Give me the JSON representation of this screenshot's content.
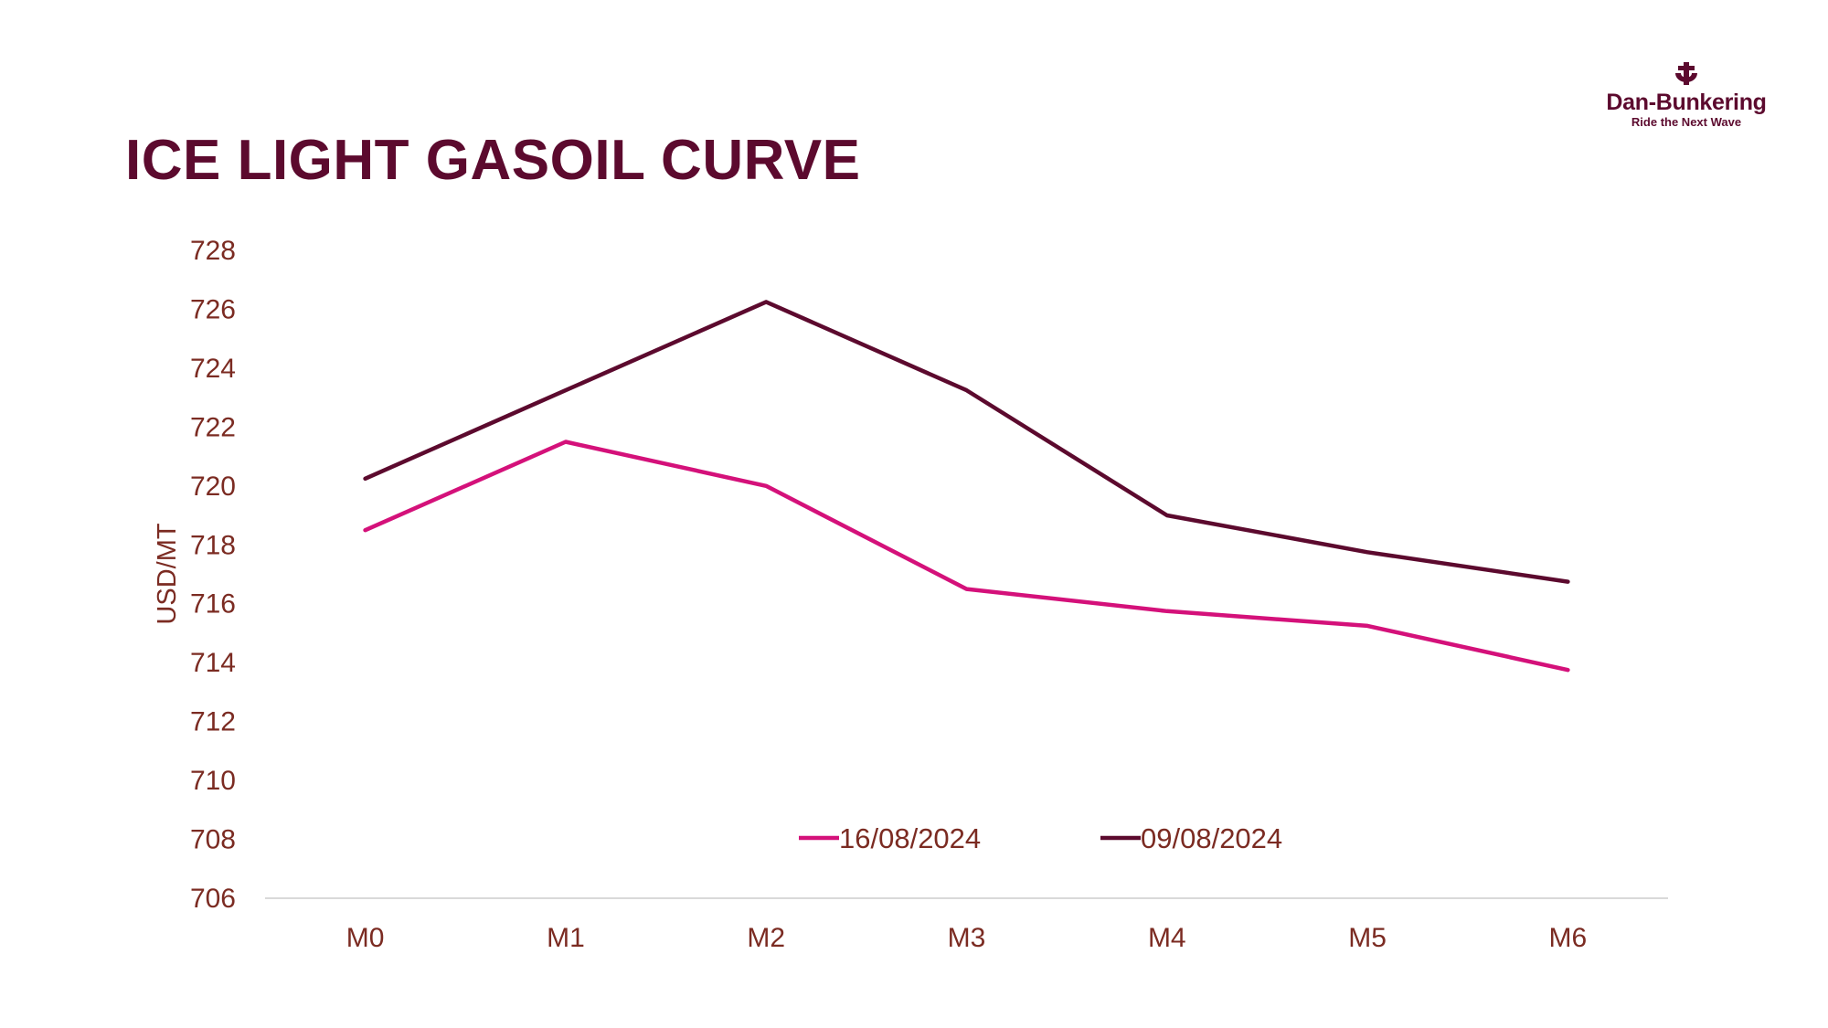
{
  "page": {
    "title": "ICE LIGHT GASOIL CURVE",
    "brand_color": "#5c0a2e"
  },
  "logo": {
    "icon": "anchor-d-icon",
    "name": "Dan-Bunkering",
    "tagline": "Ride the Next Wave"
  },
  "chart_data": {
    "type": "line",
    "title": "",
    "xlabel": "",
    "ylabel": "USD/MT",
    "categories": [
      "M0",
      "M1",
      "M2",
      "M3",
      "M4",
      "M5",
      "M6"
    ],
    "ylim": [
      706,
      728
    ],
    "yticks": [
      "706",
      "708",
      "710",
      "712",
      "714",
      "716",
      "718",
      "720",
      "722",
      "724",
      "726",
      "728"
    ],
    "grid": false,
    "legend_position": "bottom-center",
    "tick_color": "#7b2b22",
    "axis_line_color": "#d9d9d9",
    "series": [
      {
        "name": "16/08/2024",
        "color": "#d4117a",
        "values": [
          718.5,
          721.5,
          720.0,
          716.5,
          715.75,
          715.25,
          713.75
        ]
      },
      {
        "name": "09/08/2024",
        "color": "#5c0a2e",
        "values": [
          720.25,
          723.25,
          726.25,
          723.25,
          719.0,
          717.75,
          716.75
        ]
      }
    ]
  }
}
